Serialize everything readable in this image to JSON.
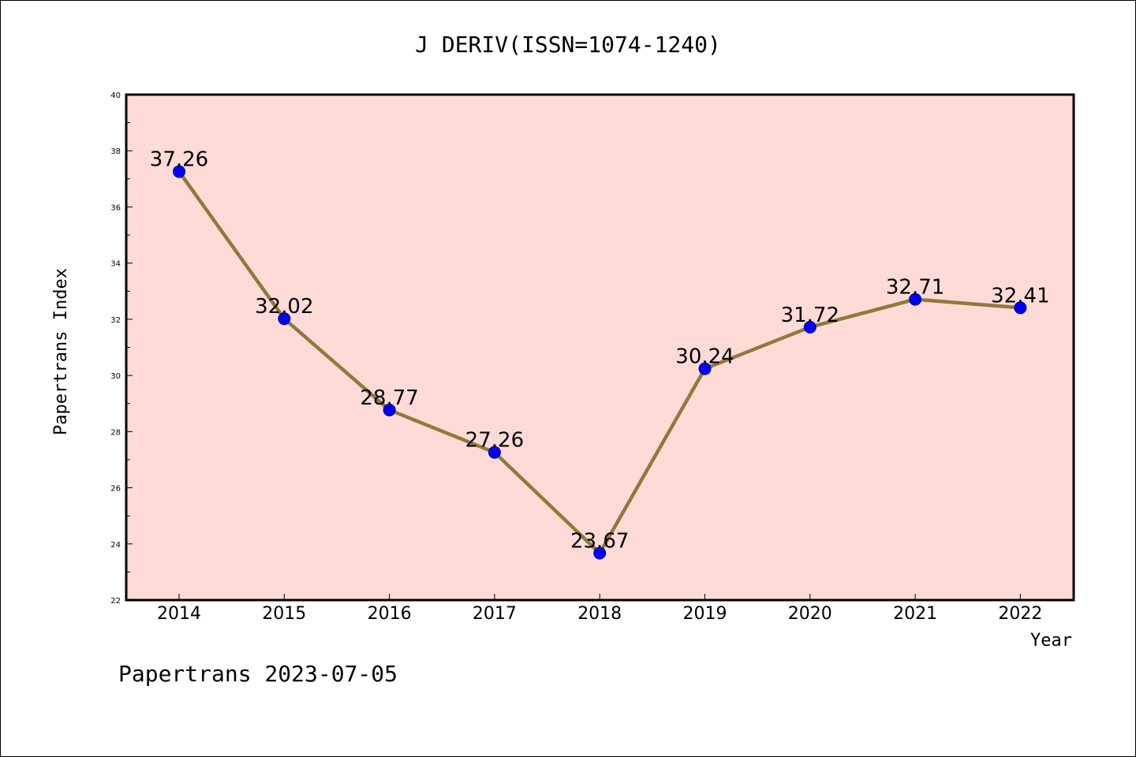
{
  "chart_data": {
    "type": "line",
    "title": "J DERIV(ISSN=1074-1240)",
    "xlabel": "Year",
    "ylabel": "Papertrans Index",
    "categories": [
      "2014",
      "2015",
      "2016",
      "2017",
      "2018",
      "2019",
      "2020",
      "2021",
      "2022"
    ],
    "series": [
      {
        "values": [
          37.26,
          32.02,
          28.77,
          27.26,
          23.67,
          30.24,
          31.72,
          32.71,
          32.41
        ],
        "labels": [
          "37.26",
          "32.02",
          "28.77",
          "27.26",
          "23.67",
          "30.24",
          "31.72",
          "32.71",
          "32.41"
        ]
      }
    ],
    "ylim": [
      22,
      40
    ],
    "yticks": [
      "22",
      "24",
      "26",
      "28",
      "30",
      "32",
      "34",
      "36",
      "38",
      "40"
    ],
    "grid": false,
    "legend": "none",
    "footer": "Papertrans 2023-07-05",
    "colors": {
      "plot_background": "#FFDBD8",
      "line": "#8E7B3B",
      "marker": "#0000FF",
      "frame": "#000000"
    }
  }
}
